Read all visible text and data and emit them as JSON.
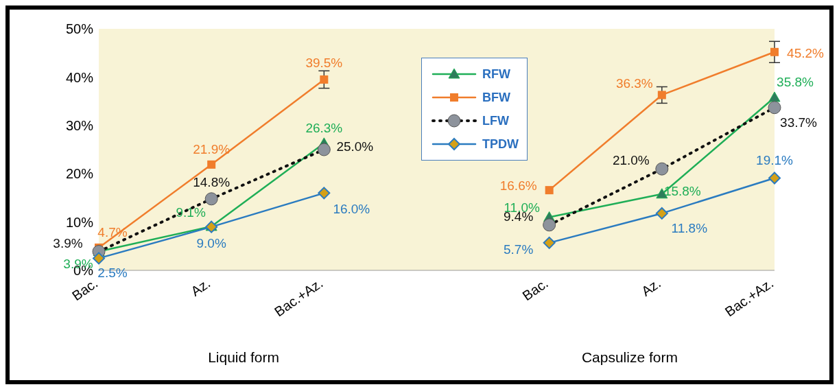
{
  "chart_data": {
    "type": "line",
    "categories": [
      "Bac.",
      "Az.",
      "Bac.+Az.",
      null,
      "Bac.",
      "Az.",
      "Bac.+Az."
    ],
    "series": [
      {
        "name": "RFW",
        "color": "#1fae57",
        "marker": "triangle",
        "line_style": "solid",
        "values": [
          3.9,
          9.1,
          26.3,
          null,
          11.0,
          15.8,
          35.8
        ],
        "value_labels": [
          "3.9%",
          "9.1%",
          "26.3%",
          null,
          "11.0%",
          "15.8%",
          "35.8%"
        ]
      },
      {
        "name": "BFW",
        "color": "#f07d2c",
        "marker": "square",
        "line_style": "solid",
        "values": [
          4.7,
          21.9,
          39.5,
          null,
          16.6,
          36.3,
          45.2
        ],
        "value_labels": [
          "4.7%",
          "21.9%",
          "39.5%",
          null,
          "16.6%",
          "36.3%",
          "45.2%"
        ],
        "errors": [
          null,
          null,
          1.8,
          null,
          null,
          1.7,
          2.2
        ]
      },
      {
        "name": "LFW",
        "color": "#111111",
        "marker": "circle",
        "line_style": "dotted",
        "values": [
          3.9,
          14.8,
          25.0,
          null,
          9.4,
          21.0,
          33.7
        ],
        "value_labels": [
          "3.9%",
          "14.8%",
          "25.0%",
          null,
          "9.4%",
          "21.0%",
          "33.7%"
        ]
      },
      {
        "name": "TPDW",
        "color": "#2a7bc0",
        "marker": "diamond",
        "line_style": "solid",
        "values": [
          2.5,
          9.0,
          16.0,
          null,
          5.7,
          11.8,
          19.1
        ],
        "value_labels": [
          "2.5%",
          "9.0%",
          "16.0%",
          null,
          "5.7%",
          "11.8%",
          "19.1%"
        ]
      }
    ],
    "ylim": [
      0,
      50
    ],
    "yticks": [
      {
        "value": 0,
        "label": "0%"
      },
      {
        "value": 10,
        "label": "10%"
      },
      {
        "value": 20,
        "label": "20%"
      },
      {
        "value": 30,
        "label": "30%"
      },
      {
        "value": 40,
        "label": "40%"
      },
      {
        "value": 50,
        "label": "50%"
      }
    ],
    "legend": "top",
    "annotations": [
      "Liquid form",
      "Capsulize form"
    ]
  }
}
